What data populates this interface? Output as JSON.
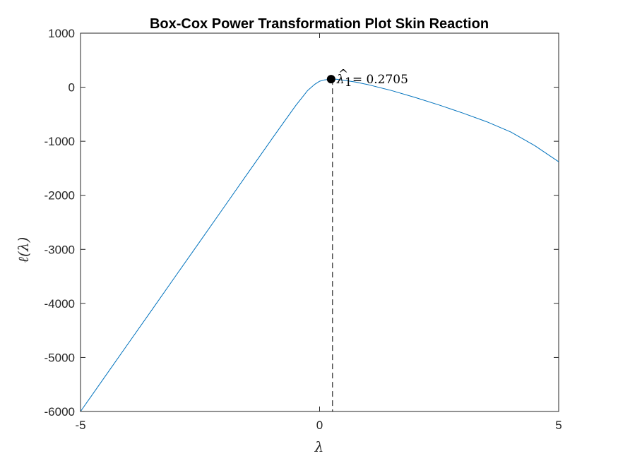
{
  "chart_data": {
    "type": "line",
    "title": "Box-Cox Power Transformation Plot Skin Reaction",
    "xlabel": "λ",
    "ylabel": "ℓ(λ)",
    "xlim": [
      -5,
      5
    ],
    "ylim": [
      -6000,
      1000
    ],
    "xticks": [
      -5,
      0,
      5
    ],
    "yticks": [
      1000,
      0,
      -1000,
      -2000,
      -3000,
      -4000,
      -5000,
      -6000
    ],
    "grid": false,
    "line_color": "#0072BD",
    "series": [
      {
        "x": [
          -5,
          -4.5,
          -4,
          -3.5,
          -3,
          -2.5,
          -2,
          -1.5,
          -1,
          -0.75,
          -0.5,
          -0.25,
          -0.1,
          0,
          0.1,
          0.2,
          0.2705,
          0.35,
          0.5,
          0.75,
          1,
          1.5,
          2,
          2.5,
          3,
          3.5,
          4,
          4.5,
          5
        ],
        "y": [
          -6000,
          -5370,
          -4740,
          -4110,
          -3480,
          -2850,
          -2220,
          -1590,
          -960,
          -650,
          -340,
          -60,
          55,
          110,
          135,
          145,
          150,
          148,
          130,
          95,
          50,
          -60,
          -190,
          -330,
          -480,
          -640,
          -830,
          -1080,
          -1380
        ]
      }
    ],
    "annotation": {
      "x": 0.2705,
      "y": 150,
      "label": "= 0.2705",
      "symbol": "λ",
      "subscript": "1",
      "hat": "^"
    }
  }
}
